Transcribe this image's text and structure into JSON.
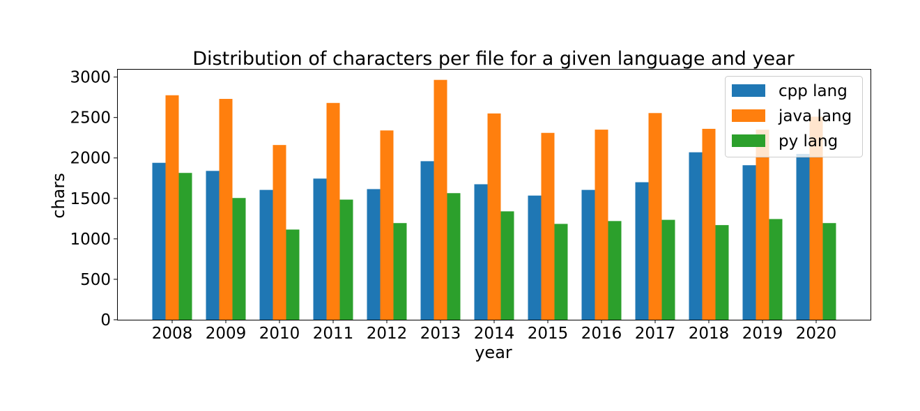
{
  "chart_data": {
    "type": "bar",
    "title": "Distribution of characters per file for a given language and year",
    "xlabel": "year",
    "ylabel": "chars",
    "categories": [
      "2008",
      "2009",
      "2010",
      "2011",
      "2012",
      "2013",
      "2014",
      "2015",
      "2016",
      "2017",
      "2018",
      "2019",
      "2020"
    ],
    "series": [
      {
        "name": "cpp lang",
        "color": "#1f77b4",
        "values": [
          1940,
          1840,
          1605,
          1745,
          1615,
          1960,
          1675,
          1535,
          1605,
          1700,
          2070,
          1910,
          2050
        ]
      },
      {
        "name": "java lang",
        "color": "#ff7f0e",
        "values": [
          2775,
          2730,
          2160,
          2680,
          2340,
          2965,
          2550,
          2310,
          2350,
          2555,
          2360,
          2350,
          2510
        ]
      },
      {
        "name": "py lang",
        "color": "#2ca02c",
        "values": [
          1815,
          1505,
          1115,
          1485,
          1195,
          1565,
          1340,
          1185,
          1220,
          1235,
          1170,
          1245,
          1195
        ]
      }
    ],
    "ylim": [
      0,
      3100
    ],
    "yticks": [
      "0",
      "500",
      "1000",
      "1500",
      "2000",
      "2500",
      "3000"
    ],
    "grid": false,
    "legend_position": "top-right"
  }
}
